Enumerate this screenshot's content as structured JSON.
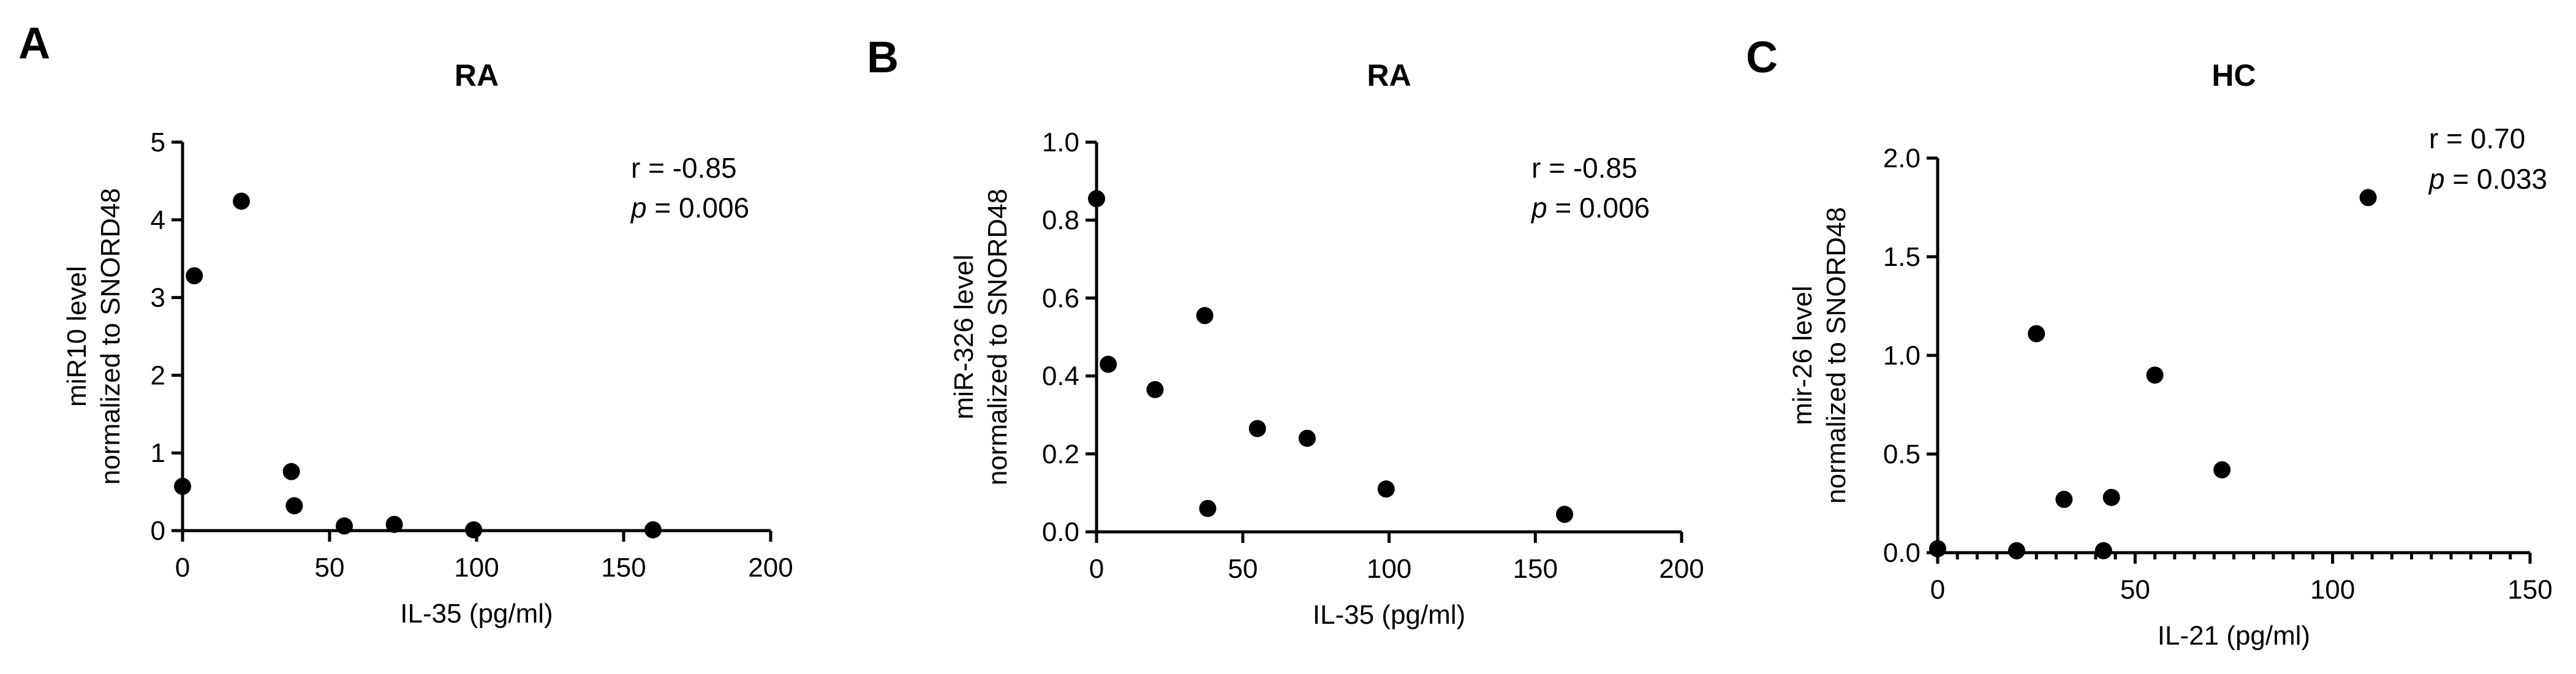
{
  "chart_data": [
    {
      "panel": "A",
      "type": "scatter",
      "title": "RA",
      "xlabel": "IL-35 (pg/ml)",
      "ylabel": [
        "miR10 level",
        "normalized to SNORD48"
      ],
      "xlim": [
        0,
        200
      ],
      "ylim": [
        0,
        5
      ],
      "xticks": [
        0,
        50,
        100,
        150,
        200
      ],
      "yticks": [
        0,
        1,
        2,
        3,
        4,
        5
      ],
      "ytick_labels": [
        "0",
        "1",
        "2",
        "3",
        "4",
        "5"
      ],
      "x_minor": 0,
      "y_minor": 0,
      "points": [
        [
          0,
          0.57
        ],
        [
          4,
          3.28
        ],
        [
          20,
          4.24
        ],
        [
          37,
          0.76
        ],
        [
          38,
          0.32
        ],
        [
          55,
          0.06
        ],
        [
          72,
          0.08
        ],
        [
          99,
          0.01
        ],
        [
          160,
          0.01
        ]
      ],
      "annotation": {
        "r_text": "r = -0.85",
        "p_symbol": "p",
        "p_value": " = 0.006"
      }
    },
    {
      "panel": "B",
      "type": "scatter",
      "title": "RA",
      "xlabel": "IL-35 (pg/ml)",
      "ylabel": [
        "miR-326 level",
        "normalized to SNORD48"
      ],
      "xlim": [
        0,
        200
      ],
      "ylim": [
        0,
        1.0
      ],
      "xticks": [
        0,
        50,
        100,
        150,
        200
      ],
      "yticks": [
        0,
        0.2,
        0.4,
        0.6,
        0.8,
        1.0
      ],
      "ytick_labels": [
        "0.0",
        "0.2",
        "0.4",
        "0.6",
        "0.8",
        "1.0"
      ],
      "x_minor": 0,
      "y_minor": 0,
      "points": [
        [
          0,
          0.855
        ],
        [
          4,
          0.43
        ],
        [
          20,
          0.365
        ],
        [
          37,
          0.555
        ],
        [
          38,
          0.06
        ],
        [
          55,
          0.265
        ],
        [
          72,
          0.24
        ],
        [
          99,
          0.11
        ],
        [
          160,
          0.045
        ]
      ],
      "annotation": {
        "r_text": "r = -0.85",
        "p_symbol": "p",
        "p_value": " = 0.006"
      }
    },
    {
      "panel": "C",
      "type": "scatter",
      "title": "HC",
      "xlabel": "IL-21 (pg/ml)",
      "ylabel": [
        "mir-26 level",
        "normalized to SNORD48"
      ],
      "xlim": [
        0,
        150
      ],
      "ylim": [
        0,
        2.0
      ],
      "xticks": [
        0,
        50,
        100,
        150
      ],
      "yticks": [
        0,
        0.5,
        1.0,
        1.5,
        2.0
      ],
      "ytick_labels": [
        "0.0",
        "0.5",
        "1.0",
        "1.5",
        "2.0"
      ],
      "x_minor": 5,
      "y_minor": 0,
      "points": [
        [
          0,
          0.02
        ],
        [
          20,
          0.01
        ],
        [
          25,
          1.11
        ],
        [
          32,
          0.27
        ],
        [
          42,
          0.01
        ],
        [
          44,
          0.28
        ],
        [
          55,
          0.9
        ],
        [
          72,
          0.42
        ],
        [
          109,
          1.8
        ]
      ],
      "annotation": {
        "r_text": "r = 0.70",
        "p_symbol": "p",
        "p_value": " = 0.033"
      }
    }
  ]
}
